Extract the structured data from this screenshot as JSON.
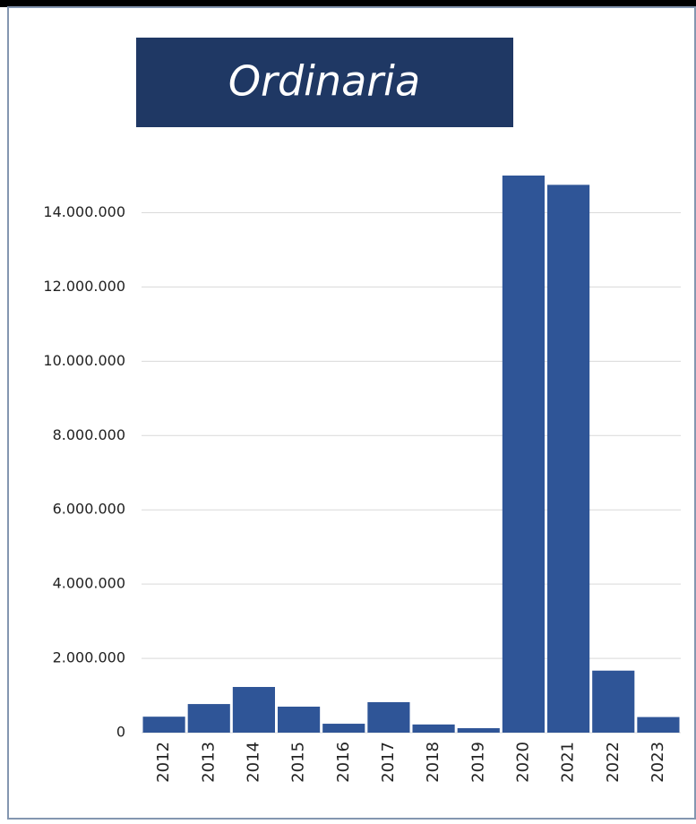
{
  "chart_data": {
    "type": "bar",
    "title": "Ordinaria",
    "categories": [
      "2012",
      "2013",
      "2014",
      "2015",
      "2016",
      "2017",
      "2018",
      "2019",
      "2020",
      "2021",
      "2022",
      "2023"
    ],
    "values": [
      430000,
      770000,
      1230000,
      700000,
      240000,
      820000,
      220000,
      120000,
      15000000,
      14750000,
      1670000,
      420000
    ],
    "color": "#2f5597",
    "ylim": [
      0,
      15000000
    ],
    "yticks": [
      0,
      {
        "value": 2000000,
        "label": "2.000.000"
      },
      {
        "value": 4000000,
        "label": "4.000.000"
      },
      {
        "value": 6000000,
        "label": "6.000.000"
      },
      {
        "value": 8000000,
        "label": "8.000.000"
      },
      {
        "value": 10000000,
        "label": "10.000.000"
      },
      {
        "value": 12000000,
        "label": "12.000.000"
      },
      {
        "value": 14000000,
        "label": "14.000.000"
      }
    ],
    "grid": true
  }
}
